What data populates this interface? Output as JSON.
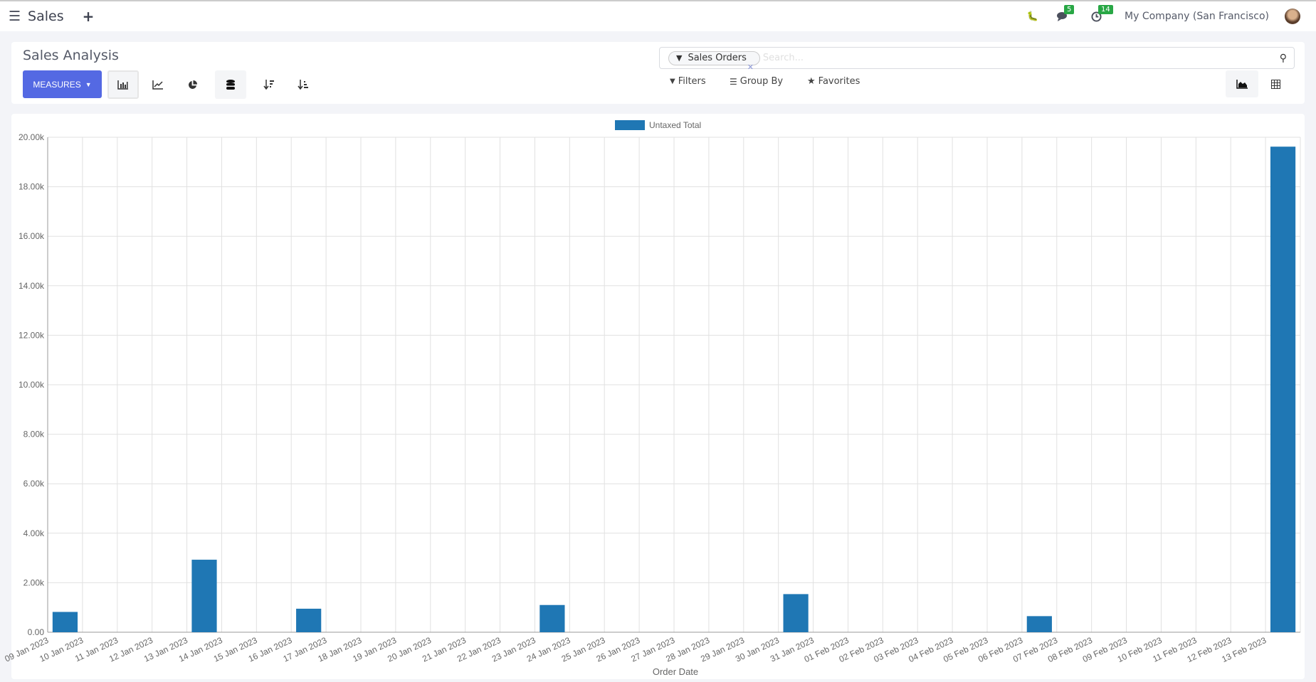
{
  "navbar": {
    "app_name": "Sales",
    "messages_count": "5",
    "activities_count": "14",
    "company": "My Company (San Francisco)"
  },
  "control_panel": {
    "title": "Sales Analysis",
    "measures_label": "MEASURES",
    "search": {
      "facet_label": "Sales Orders",
      "placeholder": "Search..."
    },
    "filters_label": "Filters",
    "group_by_label": "Group By",
    "favorites_label": "Favorites"
  },
  "colors": {
    "accent": "#5469e3",
    "bar": "#1f77b4",
    "badge": "#28a745"
  },
  "chart_data": {
    "type": "bar",
    "legend": [
      "Untaxed Total"
    ],
    "legend_position": "top",
    "xlabel": "Order Date",
    "ylabel": "",
    "ylim": [
      0,
      20000
    ],
    "yticks": [
      "0.00",
      "2.00k",
      "4.00k",
      "6.00k",
      "8.00k",
      "10.00k",
      "12.00k",
      "14.00k",
      "16.00k",
      "18.00k",
      "20.00k"
    ],
    "grid": true,
    "categories": [
      "09 Jan 2023",
      "10 Jan 2023",
      "11 Jan 2023",
      "12 Jan 2023",
      "13 Jan 2023",
      "14 Jan 2023",
      "15 Jan 2023",
      "16 Jan 2023",
      "17 Jan 2023",
      "18 Jan 2023",
      "19 Jan 2023",
      "20 Jan 2023",
      "21 Jan 2023",
      "22 Jan 2023",
      "23 Jan 2023",
      "24 Jan 2023",
      "25 Jan 2023",
      "26 Jan 2023",
      "27 Jan 2023",
      "28 Jan 2023",
      "29 Jan 2023",
      "30 Jan 2023",
      "31 Jan 2023",
      "01 Feb 2023",
      "02 Feb 2023",
      "03 Feb 2023",
      "04 Feb 2023",
      "05 Feb 2023",
      "06 Feb 2023",
      "07 Feb 2023",
      "08 Feb 2023",
      "09 Feb 2023",
      "10 Feb 2023",
      "11 Feb 2023",
      "12 Feb 2023",
      "13 Feb 2023"
    ],
    "series": [
      {
        "name": "Untaxed Total",
        "values": [
          820,
          0,
          0,
          0,
          2930,
          0,
          0,
          950,
          0,
          0,
          0,
          0,
          0,
          0,
          1100,
          0,
          0,
          0,
          0,
          0,
          0,
          1540,
          0,
          0,
          0,
          0,
          0,
          0,
          650,
          0,
          0,
          0,
          0,
          0,
          0,
          19620
        ]
      }
    ]
  }
}
